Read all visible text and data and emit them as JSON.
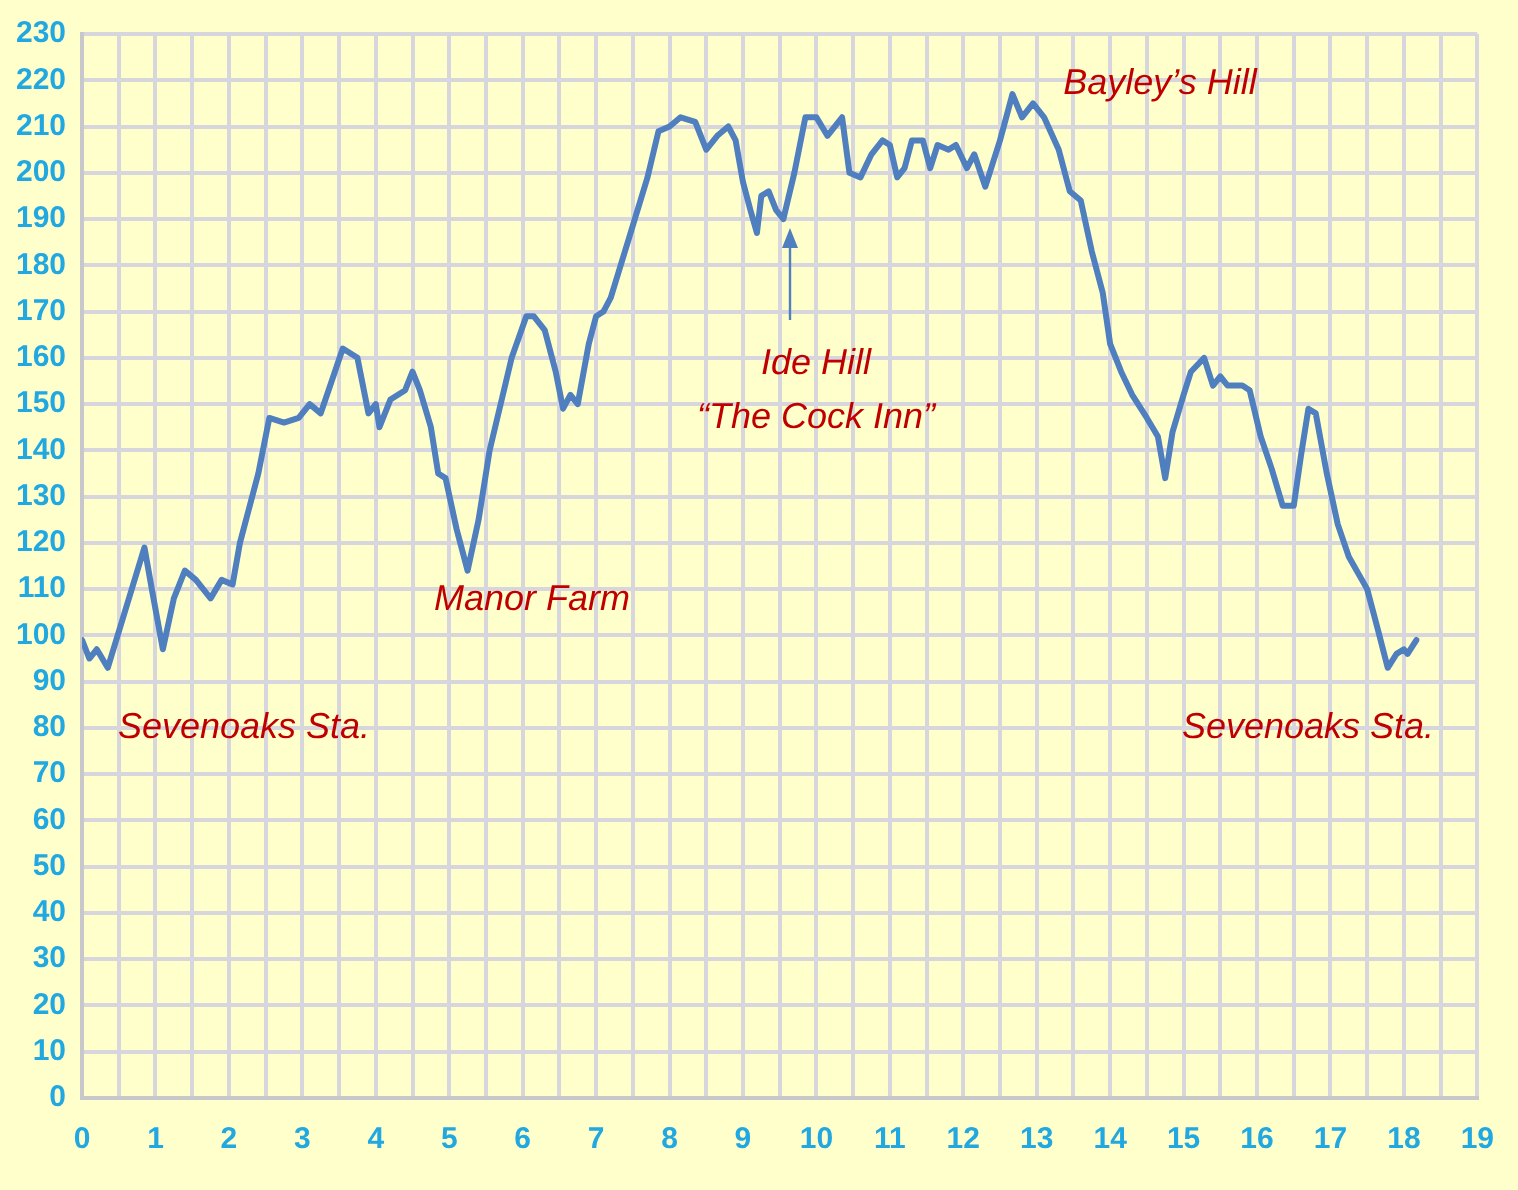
{
  "chart_data": {
    "type": "line",
    "grid": true,
    "legend": false,
    "marker": "none",
    "line_style": "solid",
    "xlim": [
      0,
      19
    ],
    "xticks": [
      0,
      {
        "value": 0.5,
        "label": null
      },
      1,
      {
        "value": 1.5,
        "label": null
      },
      2,
      {
        "value": 2.5,
        "label": null
      },
      3,
      {
        "value": 3.5,
        "label": null
      },
      4,
      {
        "value": 4.5,
        "label": null
      },
      5,
      {
        "value": 5.5,
        "label": null
      },
      6,
      {
        "value": 6.5,
        "label": null
      },
      7,
      {
        "value": 7.5,
        "label": null
      },
      8,
      {
        "value": 8.5,
        "label": null
      },
      9,
      {
        "value": 9.5,
        "label": null
      },
      10,
      {
        "value": 10.5,
        "label": null
      },
      11,
      {
        "value": 11.5,
        "label": null
      },
      12,
      {
        "value": 12.5,
        "label": null
      },
      13,
      {
        "value": 13.5,
        "label": null
      },
      14,
      {
        "value": 14.5,
        "label": null
      },
      15,
      {
        "value": 15.5,
        "label": null
      },
      16,
      {
        "value": 16.5,
        "label": null
      },
      17,
      {
        "value": 17.5,
        "label": null
      },
      18,
      {
        "value": 18.5,
        "label": null
      },
      19
    ],
    "ylim": [
      0,
      230
    ],
    "yticks": [
      0,
      10,
      20,
      30,
      40,
      50,
      60,
      70,
      80,
      90,
      100,
      110,
      120,
      130,
      140,
      150,
      160,
      170,
      180,
      190,
      200,
      210,
      220,
      230
    ],
    "annotations": [
      "Sevenoaks Sta.",
      "Manor Farm",
      "Ide Hill\n“The Cock Inn”",
      "Bayley’s Hill",
      "Sevenoaks Sta."
    ],
    "series": [
      {
        "color": "#4f7fbf",
        "x": [
          0,
          0.1,
          0.2,
          0.35,
          0.6,
          0.85,
          0.95,
          1.1,
          1.25,
          1.4,
          1.55,
          1.75,
          1.9,
          2.05,
          2.15,
          2.4,
          2.55,
          2.75,
          2.95,
          3.1,
          3.25,
          3.4,
          3.55,
          3.75,
          3.9,
          4.0,
          4.05,
          4.2,
          4.4,
          4.5,
          4.6,
          4.75,
          4.85,
          4.95,
          5.1,
          5.25,
          5.4,
          5.55,
          5.7,
          5.85,
          6.05,
          6.15,
          6.3,
          6.45,
          6.55,
          6.65,
          6.75,
          6.9,
          7.0,
          7.1,
          7.2,
          7.45,
          7.7,
          7.85,
          8.0,
          8.15,
          8.35,
          8.5,
          8.65,
          8.8,
          8.9,
          9.0,
          9.1,
          9.19,
          9.25,
          9.35,
          9.45,
          9.55,
          9.7,
          9.85,
          10.0,
          10.15,
          10.35,
          10.45,
          10.6,
          10.75,
          10.9,
          11.0,
          11.1,
          11.2,
          11.3,
          11.45,
          11.55,
          11.65,
          11.8,
          11.9,
          12.05,
          12.15,
          12.3,
          12.5,
          12.67,
          12.8,
          12.95,
          13.1,
          13.3,
          13.45,
          13.6,
          13.75,
          13.9,
          14.0,
          14.15,
          14.3,
          14.5,
          14.65,
          14.75,
          14.85,
          15.0,
          15.1,
          15.28,
          15.4,
          15.5,
          15.6,
          15.8,
          15.9,
          16.05,
          16.2,
          16.35,
          16.5,
          16.6,
          16.7,
          16.8,
          16.95,
          17.1,
          17.25,
          17.5,
          17.65,
          17.78,
          17.9,
          18.0,
          18.05,
          18.17
        ],
        "values": [
          99,
          95,
          97,
          93,
          106,
          119,
          110,
          97,
          108,
          114,
          112,
          108,
          112,
          111,
          120,
          135,
          147,
          146,
          147,
          150,
          148,
          155,
          162,
          160,
          148,
          150,
          145,
          151,
          153,
          157,
          153,
          145,
          135,
          134,
          123,
          114,
          125,
          140,
          150,
          160,
          169,
          169,
          166,
          157,
          149,
          152,
          150,
          163,
          169,
          170,
          173,
          186,
          199,
          209,
          210,
          212,
          211,
          205,
          208,
          210,
          207,
          198,
          192,
          187,
          195,
          196,
          192,
          190,
          200,
          212,
          212,
          208,
          212,
          200,
          199,
          204,
          207,
          206,
          199,
          201,
          207,
          207,
          201,
          206,
          205,
          206,
          201,
          204,
          197,
          207,
          217,
          212,
          215,
          212,
          205,
          196,
          194,
          183,
          174,
          163,
          157,
          152,
          147,
          143,
          134,
          144,
          152,
          157,
          160,
          154,
          156,
          154,
          154,
          153,
          143,
          136,
          128,
          128,
          139,
          149,
          148,
          135,
          124,
          117,
          110,
          101,
          93,
          96,
          97,
          96,
          99
        ]
      }
    ]
  }
}
